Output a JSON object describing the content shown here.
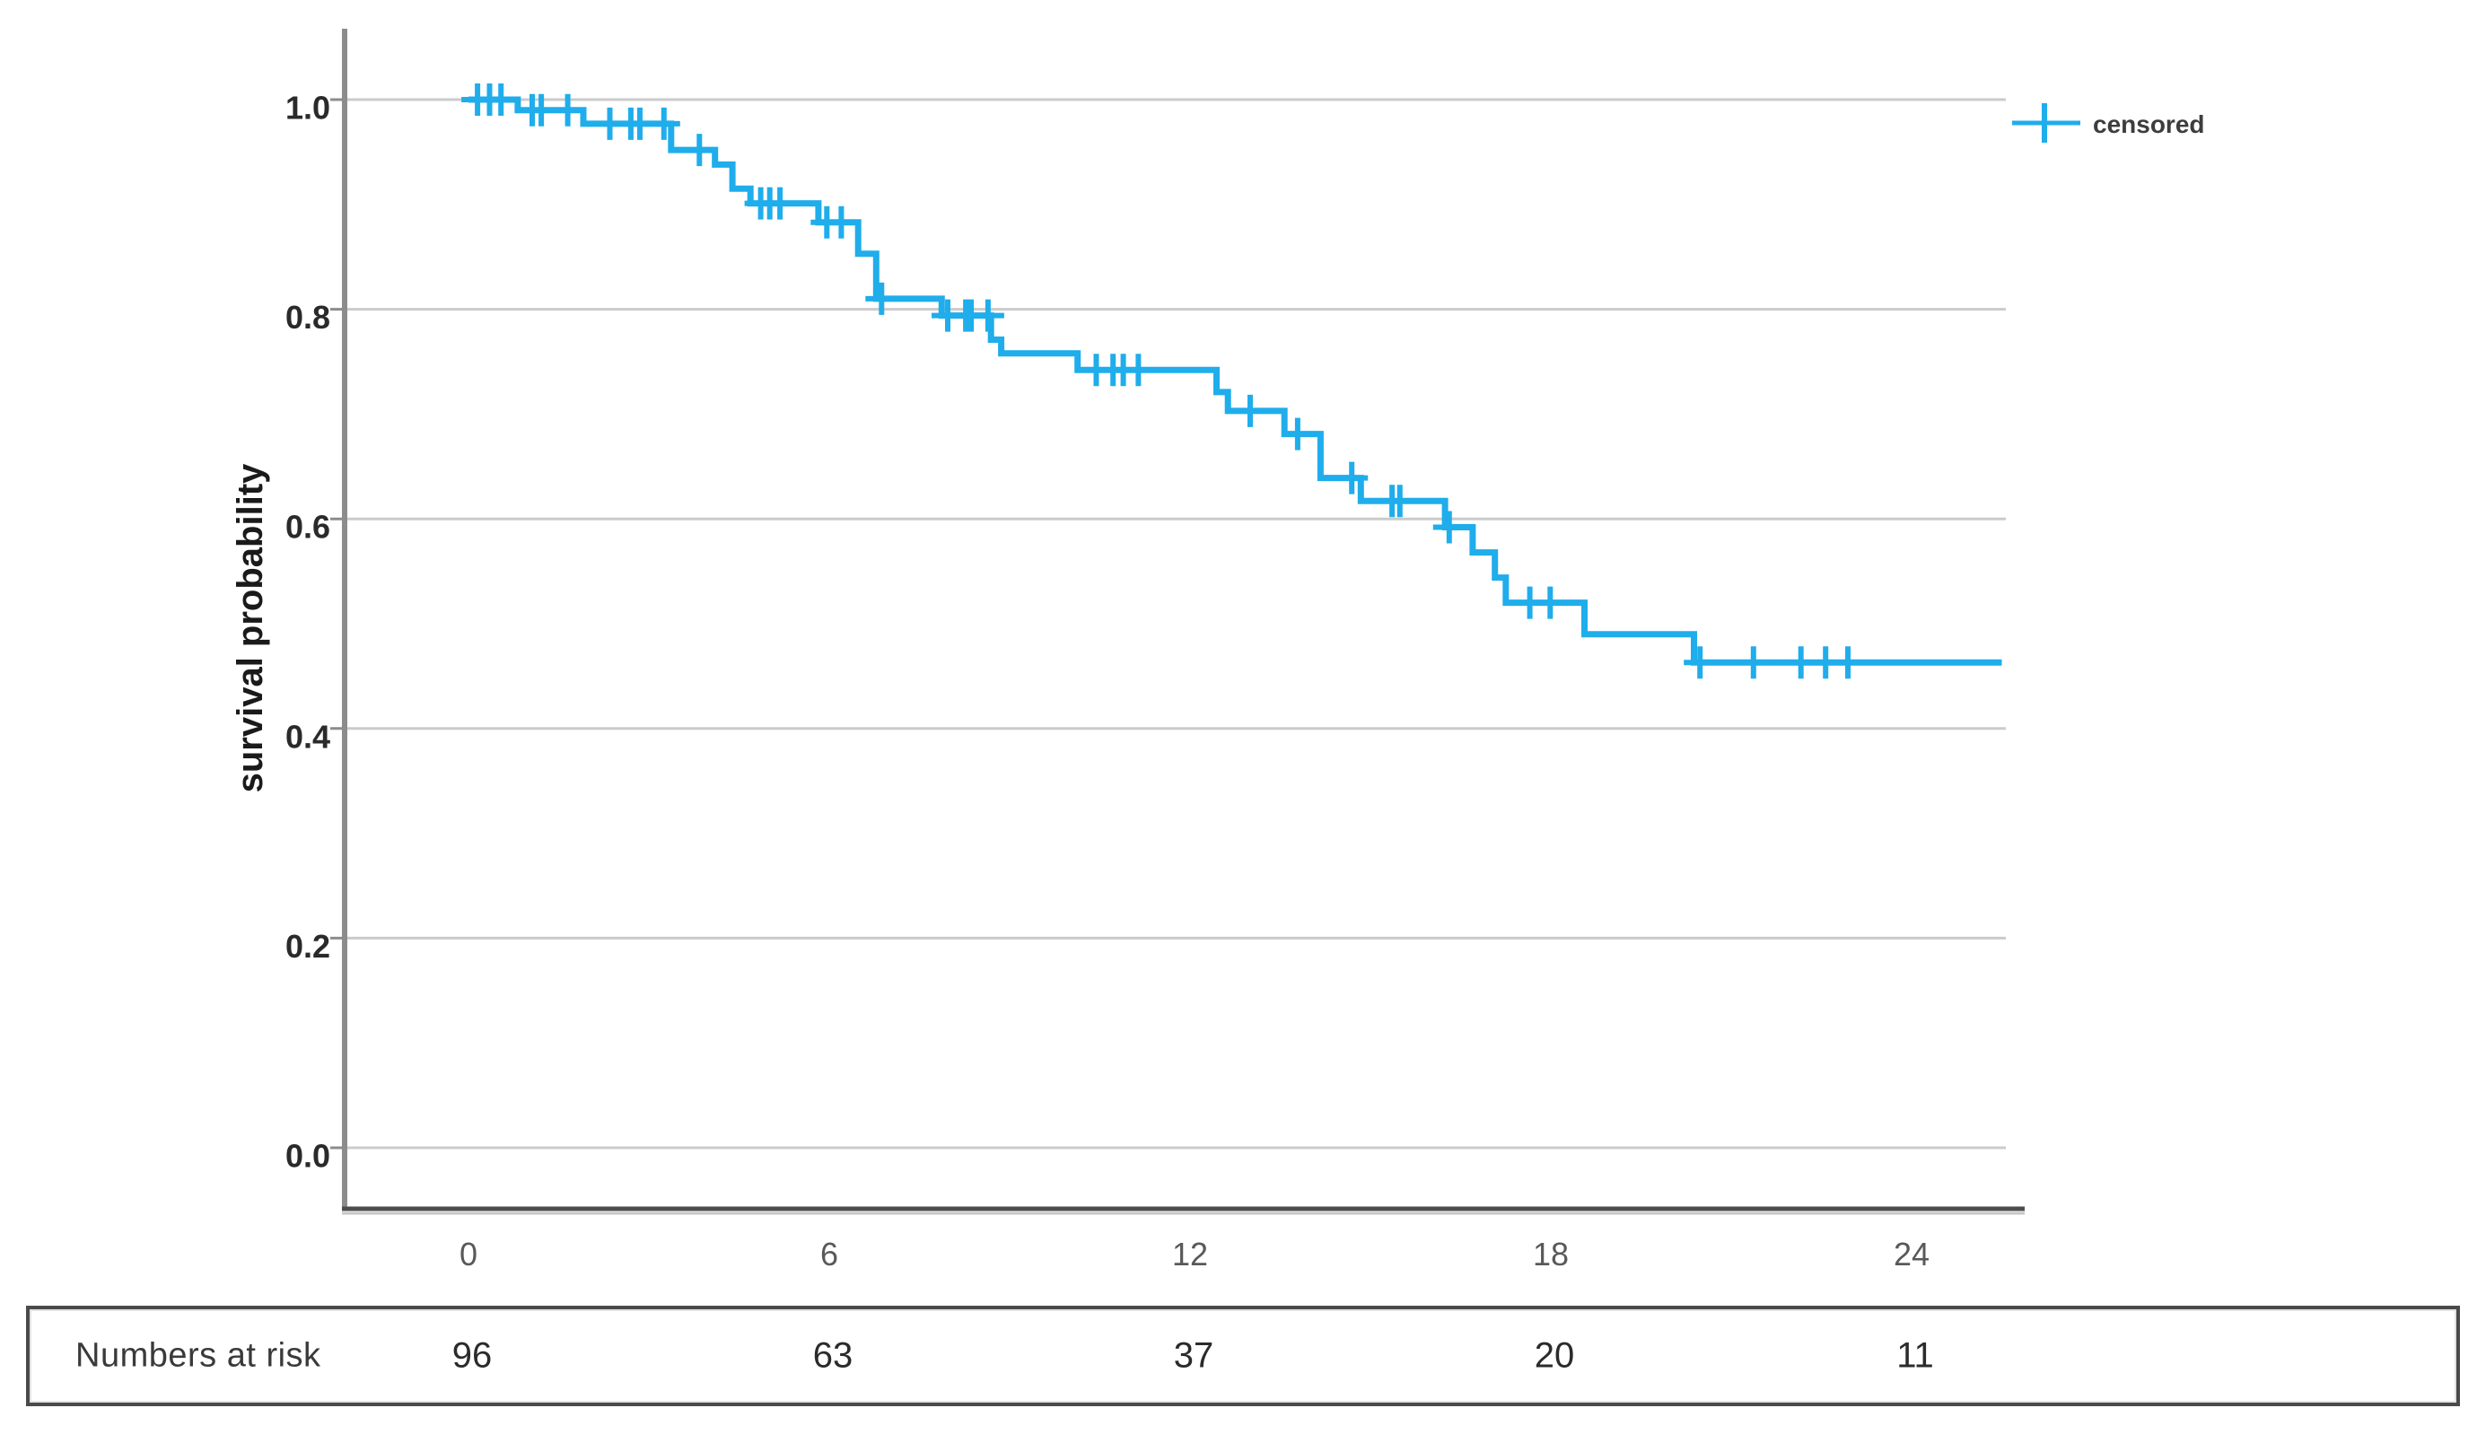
{
  "figure": {
    "background": "#FFFFFF"
  },
  "colors": {
    "curve": "#1FADEB",
    "grid_line": "#CBCBCB",
    "y_axis_line": "#8C8C8C",
    "x_axis_line": "#4D4D4D",
    "x_axis_underline": "#C6C6C6",
    "y_tick_label": "#2A2A2A",
    "x_tick_label": "#595959",
    "y_axis_title": "#1A1A1A",
    "legend_text": "#3D3D3D",
    "table_border": "#4A4A4A"
  },
  "legend": {
    "label": "censored",
    "marker": "plus-on-line"
  },
  "risk_table": {
    "label": "Numbers at risk",
    "values": [
      "96",
      "63",
      "37",
      "20",
      "11"
    ]
  },
  "chart_data": {
    "type": "line",
    "subtype": "kaplan-meier-step-curve",
    "title": "",
    "xlabel": "",
    "ylabel": "survival probability",
    "xlim": [
      0,
      24
    ],
    "ylim": [
      0.0,
      1.0
    ],
    "x_ticks": [
      0,
      6,
      12,
      18,
      24
    ],
    "x_tick_labels": [
      "0",
      "6",
      "12",
      "18",
      "24"
    ],
    "y_ticks": [
      1.0,
      0.8,
      0.6,
      0.4,
      0.2,
      0.0
    ],
    "y_tick_labels": [
      "1.0",
      "0.8",
      "0.6",
      "0.4",
      "0.2",
      "0.0"
    ],
    "grid": "horizontal-only",
    "legend_position": "top-right-outside",
    "legend_entries": [
      {
        "label": "censored",
        "marker": "plus",
        "color": "#1FADEB"
      }
    ],
    "series": [
      {
        "name": "survival",
        "color": "#1FADEB",
        "steps": [
          [
            0.0,
            1.0
          ],
          [
            0.82,
            0.99
          ],
          [
            1.91,
            0.977
          ],
          [
            3.37,
            0.952
          ],
          [
            4.1,
            0.938
          ],
          [
            4.39,
            0.915
          ],
          [
            4.69,
            0.901
          ],
          [
            5.82,
            0.883
          ],
          [
            6.48,
            0.853
          ],
          [
            6.78,
            0.81
          ],
          [
            7.87,
            0.794
          ],
          [
            8.69,
            0.771
          ],
          [
            8.86,
            0.758
          ],
          [
            10.13,
            0.742
          ],
          [
            12.44,
            0.721
          ],
          [
            12.63,
            0.703
          ],
          [
            13.57,
            0.681
          ],
          [
            14.17,
            0.639
          ],
          [
            14.84,
            0.617
          ],
          [
            16.24,
            0.592
          ],
          [
            16.7,
            0.568
          ],
          [
            17.07,
            0.544
          ],
          [
            17.25,
            0.52
          ],
          [
            18.56,
            0.49
          ],
          [
            20.38,
            0.463
          ]
        ],
        "end_t": 25.5,
        "censored": [
          [
            0.15,
            1.0
          ],
          [
            0.35,
            1.0
          ],
          [
            0.54,
            1.0
          ],
          [
            1.06,
            0.99
          ],
          [
            1.21,
            0.99
          ],
          [
            1.65,
            0.99
          ],
          [
            2.35,
            0.977
          ],
          [
            2.7,
            0.977
          ],
          [
            2.85,
            0.977
          ],
          [
            3.25,
            0.977
          ],
          [
            3.84,
            0.952
          ],
          [
            4.86,
            0.901
          ],
          [
            5.01,
            0.901
          ],
          [
            5.18,
            0.901
          ],
          [
            5.96,
            0.883
          ],
          [
            6.2,
            0.883
          ],
          [
            6.87,
            0.81
          ],
          [
            7.97,
            0.794
          ],
          [
            8.27,
            0.794
          ],
          [
            8.36,
            0.794
          ],
          [
            8.64,
            0.794
          ],
          [
            10.44,
            0.742
          ],
          [
            10.72,
            0.742
          ],
          [
            10.89,
            0.742
          ],
          [
            11.14,
            0.742
          ],
          [
            13.0,
            0.703
          ],
          [
            13.79,
            0.681
          ],
          [
            14.69,
            0.639
          ],
          [
            15.36,
            0.617
          ],
          [
            15.49,
            0.617
          ],
          [
            16.31,
            0.592
          ],
          [
            17.65,
            0.52
          ],
          [
            17.99,
            0.52
          ],
          [
            20.48,
            0.463
          ],
          [
            21.37,
            0.463
          ],
          [
            22.16,
            0.463
          ],
          [
            22.57,
            0.463
          ],
          [
            22.94,
            0.463
          ]
        ]
      }
    ],
    "numbers_at_risk": {
      "label": "Numbers at risk",
      "times": [
        0,
        6,
        12,
        18,
        24
      ],
      "values": [
        96,
        63,
        37,
        20,
        11
      ]
    }
  }
}
